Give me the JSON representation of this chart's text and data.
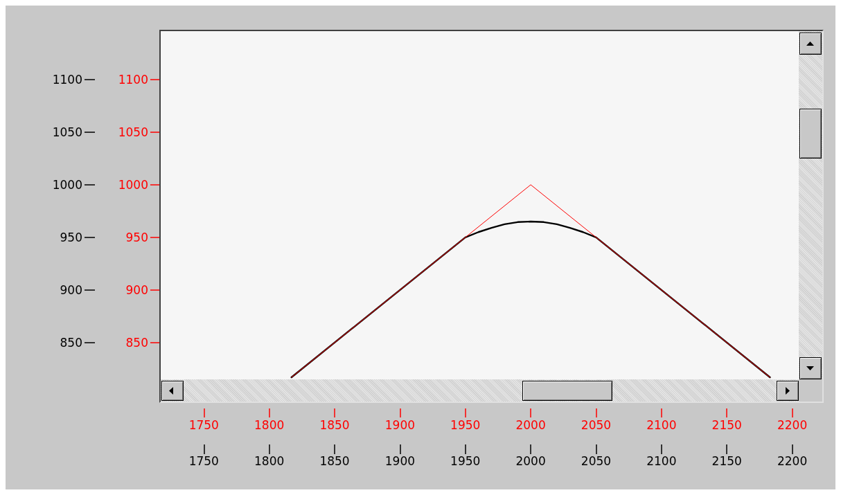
{
  "chart_data": {
    "type": "line",
    "series": [
      {
        "color": "#ff0000",
        "axis": "y2",
        "x": [
          1817,
          2000,
          2183
        ],
        "values": [
          817,
          1000,
          817
        ]
      },
      {
        "color": "#000000",
        "x": [
          1817,
          1950,
          1960,
          1970,
          1980,
          1990,
          2000,
          2010,
          2020,
          2030,
          2040,
          2050,
          2183
        ],
        "values": [
          817,
          950,
          955,
          959,
          962.5,
          964.5,
          965,
          964.5,
          962.5,
          959,
          955,
          950,
          817
        ]
      }
    ],
    "xlim": [
      1717,
      2205
    ],
    "xticks": [
      1750,
      1800,
      1850,
      1900,
      1950,
      2000,
      2050,
      2100,
      2150,
      2200
    ],
    "x2lim": [
      1717,
      2205
    ],
    "x2ticks": [
      1750,
      1800,
      1850,
      1900,
      1950,
      2000,
      2050,
      2100,
      2150,
      2200
    ],
    "ylim": [
      815,
      1146
    ],
    "yticks": [
      850,
      900,
      950,
      1000,
      1050,
      1100
    ],
    "y2lim": [
      815,
      1146
    ],
    "y2ticks": [
      850,
      900,
      950,
      1000,
      1050,
      1100
    ],
    "grid": false,
    "line_style": "solid"
  }
}
